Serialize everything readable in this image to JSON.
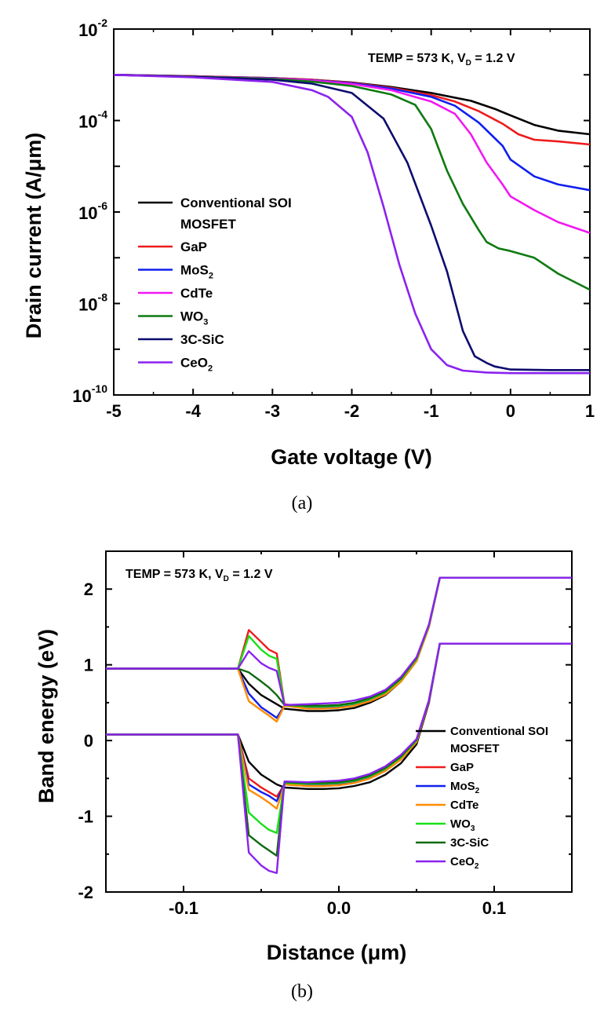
{
  "chart_data": [
    {
      "type": "line",
      "caption": "(a)",
      "annotation": {
        "main": "TEMP = 573 K, V",
        "sub": "D",
        "tail": " = 1.2 V"
      },
      "xlabel": "Gate voltage (V)",
      "ylabel": "Drain current (A/μm)",
      "yscale": "log",
      "xlim": [
        -5,
        1
      ],
      "ylim": [
        1e-10,
        0.01
      ],
      "xticks": [
        "-5",
        "-4",
        "-3",
        "-2",
        "-1",
        "0",
        "1"
      ],
      "yticks": [
        {
          "base": "10",
          "exp": "-2"
        },
        {
          "base": "10",
          "exp": "-4"
        },
        {
          "base": "10",
          "exp": "-6"
        },
        {
          "base": "10",
          "exp": "-8"
        },
        {
          "base": "10",
          "exp": "-10"
        }
      ],
      "legend_location": "left",
      "series": [
        {
          "name": "Conventional SOI MOSFET",
          "name_lines": [
            "Conventional SOI",
            "MOSFET"
          ],
          "color": "#000000",
          "x": [
            -5,
            -4,
            -3,
            -2.5,
            -2,
            -1.5,
            -1,
            -0.5,
            -0.2,
            0,
            0.3,
            0.6,
            1
          ],
          "y": [
            0.001,
            0.00093,
            0.00085,
            0.00078,
            0.00068,
            0.00054,
            0.0004,
            0.00027,
            0.00018,
            0.00013,
            8e-05,
            6e-05,
            5e-05
          ]
        },
        {
          "name": "GaP",
          "name_parts": [
            "GaP",
            ""
          ],
          "color": "#ee1c1c",
          "x": [
            -5,
            -4,
            -3,
            -2.5,
            -2,
            -1.5,
            -1,
            -0.7,
            -0.4,
            -0.1,
            0.1,
            0.3,
            0.6,
            1
          ],
          "y": [
            0.001,
            0.00093,
            0.00085,
            0.00078,
            0.00067,
            0.00052,
            0.00036,
            0.00026,
            0.00016,
            8.5e-05,
            5e-05,
            3.8e-05,
            3.5e-05,
            3e-05
          ]
        },
        {
          "name": "MoS2",
          "name_parts": [
            "MoS",
            "2"
          ],
          "color": "#1020ee",
          "x": [
            -5,
            -4,
            -3,
            -2.5,
            -2,
            -1.5,
            -1,
            -0.7,
            -0.4,
            -0.1,
            0,
            0.3,
            0.6,
            1
          ],
          "y": [
            0.001,
            0.00092,
            0.00084,
            0.00076,
            0.00065,
            0.0005,
            0.00033,
            0.00021,
            9e-05,
            2.8e-05,
            1.4e-05,
            6e-06,
            4e-06,
            3e-06
          ]
        },
        {
          "name": "CdTe",
          "name_parts": [
            "CdTe",
            ""
          ],
          "color": "#f218f2",
          "x": [
            -5,
            -4,
            -3,
            -2.5,
            -2,
            -1.5,
            -1,
            -0.7,
            -0.5,
            -0.3,
            -0.1,
            0,
            0.3,
            0.6,
            1
          ],
          "y": [
            0.001,
            0.00092,
            0.00083,
            0.00075,
            0.00063,
            0.00046,
            0.00026,
            0.00014,
            5e-05,
            1.2e-05,
            4e-06,
            2.2e-06,
            1.1e-06,
            6e-07,
            3.5e-07
          ]
        },
        {
          "name": "WO3",
          "name_parts": [
            "WO",
            "3"
          ],
          "color": "#0e7a10",
          "x": [
            -5,
            -4,
            -3,
            -2.5,
            -2,
            -1.5,
            -1.2,
            -1,
            -0.8,
            -0.6,
            -0.4,
            -0.3,
            -0.15,
            0,
            0.3,
            0.6,
            1
          ],
          "y": [
            0.001,
            0.00091,
            0.00081,
            0.00071,
            0.00057,
            0.00037,
            0.00022,
            6.5e-05,
            8e-06,
            1.5e-06,
            4e-07,
            2.2e-07,
            1.6e-07,
            1.4e-07,
            1e-07,
            4.5e-08,
            2e-08
          ]
        },
        {
          "name": "3C-SiC",
          "name_parts": [
            "3C-SiC",
            ""
          ],
          "color": "#0c0c6e",
          "x": [
            -5,
            -4,
            -3,
            -2.5,
            -2,
            -1.6,
            -1.3,
            -1,
            -0.8,
            -0.6,
            -0.45,
            -0.3,
            -0.2,
            0,
            0.5,
            1
          ],
          "y": [
            0.001,
            0.0009,
            0.00078,
            0.00064,
            0.0004,
            0.00011,
            1.2e-05,
            5e-07,
            5e-08,
            2.5e-09,
            7e-10,
            5e-10,
            4.2e-10,
            3.6e-10,
            3.5e-10,
            3.5e-10
          ]
        },
        {
          "name": "CeO2",
          "name_parts": [
            "CeO",
            "2"
          ],
          "color": "#8b22ee",
          "x": [
            -5,
            -4,
            -3,
            -2.5,
            -2.3,
            -2,
            -1.8,
            -1.6,
            -1.4,
            -1.2,
            -1,
            -0.8,
            -0.6,
            -0.3,
            0,
            0.5,
            1
          ],
          "y": [
            0.001,
            0.00088,
            0.0007,
            0.00046,
            0.00033,
            0.00012,
            2e-05,
            1.3e-06,
            7e-08,
            6e-09,
            1e-09,
            4.5e-10,
            3.4e-10,
            3.1e-10,
            3e-10,
            3e-10,
            3e-10
          ]
        }
      ]
    },
    {
      "type": "line",
      "caption": "(b)",
      "annotation": {
        "main": "TEMP = 573 K, V",
        "sub": "D",
        "tail": " = 1.2 V"
      },
      "xlabel": "Distance (μm)",
      "ylabel": "Band energy (eV)",
      "xlim": [
        -0.15,
        0.15
      ],
      "ylim": [
        -2,
        2.5
      ],
      "xticks": [
        "-0.1",
        "0.0",
        "0.1"
      ],
      "yticks": [
        "2",
        "1",
        "0",
        "-1",
        "-2"
      ],
      "legend_location": "lower right",
      "series": [
        {
          "name": "Conventional SOI MOSFET",
          "name_lines": [
            "Conventional SOI",
            "MOSFET"
          ],
          "color": "#000000",
          "x": [
            -0.15,
            -0.065,
            -0.058,
            -0.05,
            -0.04,
            -0.035,
            -0.02,
            -0.01,
            0,
            0.01,
            0.02,
            0.03,
            0.04,
            0.05,
            0.058,
            0.065,
            0.15
          ],
          "upper": [
            0.95,
            0.95,
            0.75,
            0.6,
            0.48,
            0.42,
            0.39,
            0.39,
            0.4,
            0.43,
            0.5,
            0.6,
            0.78,
            1.05,
            1.5,
            2.15,
            2.15
          ],
          "lower": [
            0.08,
            0.08,
            -0.28,
            -0.45,
            -0.58,
            -0.62,
            -0.64,
            -0.64,
            -0.63,
            -0.6,
            -0.55,
            -0.45,
            -0.3,
            -0.05,
            0.5,
            1.28,
            1.28
          ]
        },
        {
          "name": "GaP",
          "name_parts": [
            "GaP",
            ""
          ],
          "color": "#ee1c1c",
          "x": [
            -0.15,
            -0.065,
            -0.058,
            -0.05,
            -0.045,
            -0.04,
            -0.035,
            -0.02,
            -0.01,
            0,
            0.01,
            0.02,
            0.03,
            0.04,
            0.05,
            0.058,
            0.065,
            0.15
          ],
          "upper": [
            0.95,
            0.95,
            1.46,
            1.3,
            1.2,
            1.15,
            0.48,
            0.44,
            0.44,
            0.45,
            0.48,
            0.54,
            0.63,
            0.8,
            1.07,
            1.52,
            2.15,
            2.15
          ],
          "lower": [
            0.08,
            0.08,
            -0.5,
            -0.62,
            -0.68,
            -0.74,
            -0.58,
            -0.6,
            -0.6,
            -0.59,
            -0.56,
            -0.5,
            -0.4,
            -0.25,
            -0.02,
            0.52,
            1.28,
            1.28
          ]
        },
        {
          "name": "MoS2",
          "name_parts": [
            "MoS",
            "2"
          ],
          "color": "#1020ee",
          "x": [
            -0.15,
            -0.065,
            -0.058,
            -0.05,
            -0.045,
            -0.04,
            -0.035,
            -0.02,
            -0.01,
            0,
            0.01,
            0.02,
            0.03,
            0.04,
            0.05,
            0.058,
            0.065,
            0.15
          ],
          "upper": [
            0.95,
            0.95,
            0.62,
            0.44,
            0.37,
            0.3,
            0.46,
            0.43,
            0.43,
            0.44,
            0.47,
            0.53,
            0.62,
            0.79,
            1.06,
            1.51,
            2.15,
            2.15
          ],
          "lower": [
            0.08,
            0.08,
            -0.58,
            -0.68,
            -0.73,
            -0.8,
            -0.57,
            -0.59,
            -0.59,
            -0.58,
            -0.55,
            -0.49,
            -0.39,
            -0.24,
            -0.01,
            0.52,
            1.28,
            1.28
          ]
        },
        {
          "name": "CdTe",
          "name_parts": [
            "CdTe",
            ""
          ],
          "color": "#ff8c00",
          "x": [
            -0.15,
            -0.065,
            -0.058,
            -0.05,
            -0.045,
            -0.04,
            -0.035,
            -0.02,
            -0.01,
            0,
            0.01,
            0.02,
            0.03,
            0.04,
            0.05,
            0.058,
            0.065,
            0.15
          ],
          "upper": [
            0.95,
            0.95,
            0.52,
            0.4,
            0.33,
            0.25,
            0.46,
            0.42,
            0.42,
            0.43,
            0.46,
            0.52,
            0.61,
            0.78,
            1.05,
            1.5,
            2.15,
            2.15
          ],
          "lower": [
            0.08,
            0.08,
            -0.65,
            -0.75,
            -0.82,
            -0.9,
            -0.58,
            -0.6,
            -0.6,
            -0.59,
            -0.56,
            -0.5,
            -0.4,
            -0.25,
            -0.02,
            0.52,
            1.28,
            1.28
          ]
        },
        {
          "name": "WO3",
          "name_parts": [
            "WO",
            "3"
          ],
          "color": "#18e018",
          "x": [
            -0.15,
            -0.065,
            -0.058,
            -0.05,
            -0.045,
            -0.04,
            -0.035,
            -0.02,
            -0.01,
            0,
            0.01,
            0.02,
            0.03,
            0.04,
            0.05,
            0.058,
            0.065,
            0.15
          ],
          "upper": [
            0.95,
            0.95,
            1.38,
            1.2,
            1.12,
            1.08,
            0.47,
            0.45,
            0.45,
            0.46,
            0.49,
            0.55,
            0.64,
            0.81,
            1.08,
            1.52,
            2.15,
            2.15
          ],
          "lower": [
            0.08,
            0.08,
            -0.95,
            -1.1,
            -1.18,
            -1.22,
            -0.56,
            -0.57,
            -0.57,
            -0.56,
            -0.53,
            -0.47,
            -0.37,
            -0.22,
            0.0,
            0.53,
            1.28,
            1.28
          ]
        },
        {
          "name": "3C-SiC",
          "name_parts": [
            "3C-SiC",
            ""
          ],
          "color": "#0e6a0e",
          "x": [
            -0.15,
            -0.065,
            -0.058,
            -0.05,
            -0.045,
            -0.04,
            -0.035,
            -0.02,
            -0.01,
            0,
            0.01,
            0.02,
            0.03,
            0.04,
            0.05,
            0.058,
            0.065,
            0.15
          ],
          "upper": [
            0.95,
            0.95,
            0.9,
            0.78,
            0.7,
            0.6,
            0.47,
            0.46,
            0.46,
            0.47,
            0.5,
            0.56,
            0.65,
            0.82,
            1.09,
            1.53,
            2.15,
            2.15
          ],
          "lower": [
            0.08,
            0.08,
            -1.25,
            -1.38,
            -1.45,
            -1.52,
            -0.55,
            -0.56,
            -0.56,
            -0.55,
            -0.52,
            -0.46,
            -0.36,
            -0.21,
            0.01,
            0.53,
            1.28,
            1.28
          ]
        },
        {
          "name": "CeO2",
          "name_parts": [
            "CeO",
            "2"
          ],
          "color": "#8b22ee",
          "x": [
            -0.15,
            -0.065,
            -0.058,
            -0.05,
            -0.045,
            -0.04,
            -0.035,
            -0.02,
            -0.01,
            0,
            0.01,
            0.02,
            0.03,
            0.04,
            0.05,
            0.058,
            0.065,
            0.15
          ],
          "upper": [
            0.95,
            0.95,
            1.18,
            1.02,
            0.96,
            0.92,
            0.47,
            0.48,
            0.49,
            0.5,
            0.53,
            0.58,
            0.67,
            0.84,
            1.1,
            1.53,
            2.15,
            2.15
          ],
          "lower": [
            0.08,
            0.08,
            -1.48,
            -1.65,
            -1.72,
            -1.75,
            -0.54,
            -0.55,
            -0.54,
            -0.53,
            -0.5,
            -0.44,
            -0.34,
            -0.19,
            0.02,
            0.53,
            1.28,
            1.28
          ]
        }
      ]
    }
  ]
}
